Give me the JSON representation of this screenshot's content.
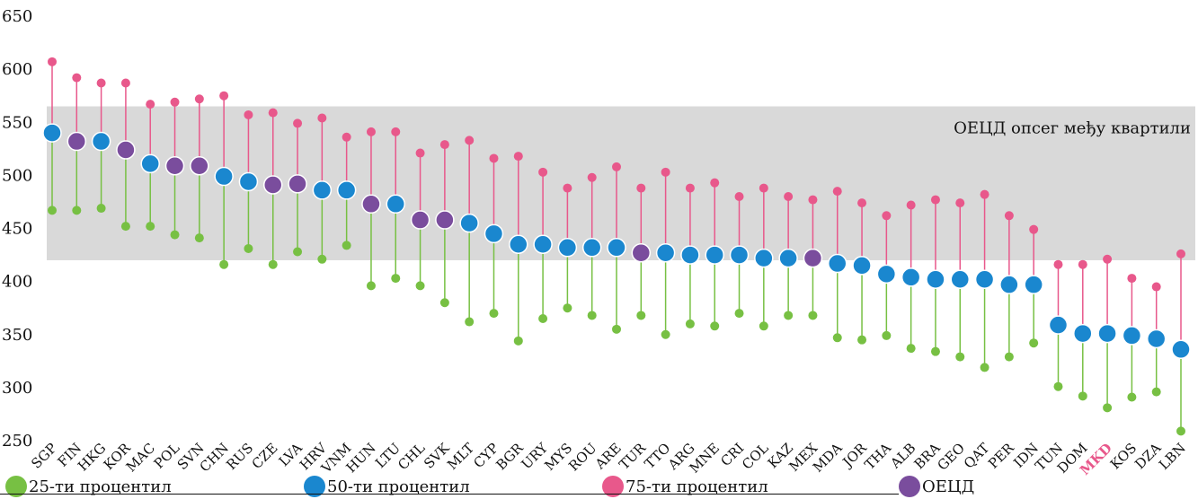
{
  "chart_data": {
    "type": "scatter",
    "subtype": "dot-range",
    "ylim": [
      250,
      650
    ],
    "y_ticks": [
      250,
      300,
      350,
      400,
      450,
      500,
      550,
      600,
      650
    ],
    "band": {
      "label": "ОЕЦД опсег међу квартили",
      "from": 420,
      "to": 565,
      "color": "#d9d9d9"
    },
    "categories": [
      "SGP",
      "FIN",
      "HKG",
      "KOR",
      "MAC",
      "POL",
      "SVN",
      "CHN",
      "RUS",
      "CZE",
      "LVA",
      "HRV",
      "VNM",
      "HUN",
      "LTU",
      "CHL",
      "SVK",
      "MLT",
      "CYP",
      "BGR",
      "URY",
      "MYS",
      "ROU",
      "ARE",
      "TUR",
      "TTO",
      "ARG",
      "MNE",
      "CRI",
      "COL",
      "KAZ",
      "MEX",
      "MDA",
      "JOR",
      "THA",
      "ALB",
      "BRA",
      "GEO",
      "QAT",
      "PER",
      "IDN",
      "TUN",
      "DOM",
      "MKD",
      "KOS",
      "DZA",
      "LBN"
    ],
    "highlight_category": "MKD",
    "highlight_color": "#e8588b",
    "oecd_categories": [
      "FIN",
      "KOR",
      "POL",
      "SVN",
      "CZE",
      "LVA",
      "HUN",
      "CHL",
      "SVK",
      "TUR",
      "MEX"
    ],
    "series": [
      {
        "name": "25-ти процентил",
        "color": "#77c043",
        "values": [
          467,
          467,
          469,
          452,
          452,
          444,
          441,
          416,
          431,
          416,
          428,
          421,
          434,
          396,
          403,
          396,
          380,
          362,
          370,
          344,
          365,
          375,
          368,
          355,
          368,
          350,
          360,
          358,
          370,
          358,
          368,
          368,
          347,
          345,
          349,
          337,
          334,
          329,
          319,
          329,
          342,
          301,
          292,
          281,
          291,
          296,
          259
        ]
      },
      {
        "name": "50-ти процентил",
        "color": "#1a87cf",
        "values": [
          540,
          532,
          532,
          524,
          511,
          509,
          509,
          499,
          494,
          491,
          492,
          486,
          486,
          473,
          473,
          458,
          458,
          455,
          445,
          435,
          435,
          432,
          432,
          432,
          427,
          427,
          425,
          425,
          425,
          422,
          422,
          422,
          417,
          415,
          407,
          404,
          402,
          402,
          402,
          397,
          397,
          359,
          351,
          351,
          349,
          346,
          336
        ]
      },
      {
        "name": "75-ти процентил",
        "color": "#e8588b",
        "values": [
          607,
          592,
          587,
          587,
          567,
          569,
          572,
          575,
          557,
          559,
          549,
          554,
          536,
          541,
          541,
          521,
          529,
          533,
          516,
          518,
          503,
          488,
          498,
          508,
          488,
          503,
          488,
          493,
          480,
          488,
          480,
          477,
          485,
          474,
          462,
          472,
          477,
          474,
          482,
          462,
          449,
          416,
          416,
          421,
          403,
          395,
          426
        ]
      }
    ],
    "oecd_series": {
      "name": "ОЕЦД",
      "color": "#7a4d9d"
    }
  },
  "legend": [
    {
      "label": "25-ти процентил",
      "color": "#77c043"
    },
    {
      "label": "50-ти процентил",
      "color": "#1a87cf"
    },
    {
      "label": "75-ти процентил",
      "color": "#e8588b"
    },
    {
      "label": "ОЕЦД",
      "color": "#7a4d9d"
    }
  ]
}
